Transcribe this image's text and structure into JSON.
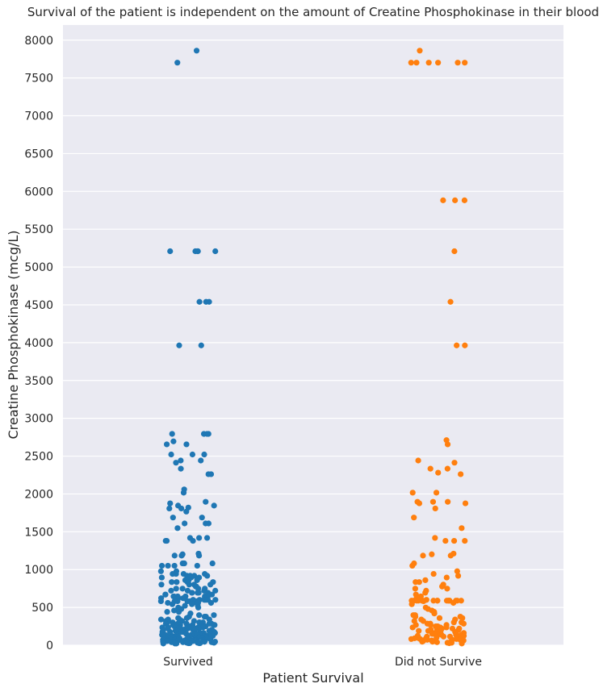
{
  "chart_data": {
    "type": "scatter",
    "title": "Survival of the patient is independent on the amount of Creatine Phosphokinase in their blood",
    "xlabel": "Patient Survival",
    "ylabel": "Creatine Phosphokinase (mcg/L)",
    "categories": [
      "Survived",
      "Did not Survive"
    ],
    "ylim": [
      0,
      8200
    ],
    "yticks": [
      0,
      500,
      1000,
      1500,
      2000,
      2500,
      3000,
      3500,
      4000,
      4500,
      5000,
      5500,
      6000,
      6500,
      7000,
      7500,
      8000
    ],
    "grid": true,
    "background": "#eaeaf2",
    "series": [
      {
        "category": "Survived",
        "color": "#1f77b4",
        "values": [
          7861,
          7702,
          5209,
          5209,
          5209,
          5209,
          5209,
          4540,
          4540,
          4540,
          3964,
          3964,
          2522,
          2522,
          2522,
          2695,
          2794,
          2794,
          2794,
          2794,
          2656,
          2656,
          2442,
          2442,
          2413,
          2334,
          2261,
          2261,
          2017,
          2060,
          1896,
          1876,
          1808,
          1846,
          1808,
          1820,
          1846,
          1767,
          1688,
          1688,
          1610,
          1610,
          1610,
          1548,
          1419,
          1419,
          1419,
          1380,
          1380,
          1380,
          1211,
          1202,
          1185,
          1185,
          1185,
          1082,
          1082,
          1082,
          1082,
          1051,
          1051,
          1051,
          1051,
          978,
          978,
          943,
          943,
          943,
          943,
          918,
          918,
          918,
          918,
          895,
          895,
          895,
          860,
          860,
          860,
          835,
          835,
          835,
          835,
          802,
          802,
          802,
          802,
          776,
          776,
          748,
          748,
          748,
          748,
          721,
          721,
          721,
          721,
          694,
          694,
          694,
          694,
          694,
          670,
          670,
          670,
          646,
          646,
          646,
          646,
          646,
          646,
          622,
          622,
          622,
          622,
          622,
          600,
          600,
          600,
          600,
          600,
          600,
          582,
          582,
          582,
          582,
          582,
          582,
          582,
          582,
          560,
          560,
          560,
          560,
          542,
          542,
          522,
          522,
          498,
          498,
          479,
          479,
          459,
          441,
          441,
          420,
          398,
          398,
          378,
          378,
          378,
          359,
          359,
          359,
          340,
          340,
          340,
          340,
          320,
          320,
          320,
          320,
          320,
          302,
          302,
          302,
          302,
          302,
          302,
          285,
          285,
          285,
          285,
          285,
          268,
          268,
          268,
          268,
          268,
          268,
          250,
          250,
          250,
          250,
          250,
          250,
          250,
          235,
          235,
          235,
          235,
          235,
          235,
          235,
          220,
          220,
          220,
          220,
          220,
          220,
          220,
          205,
          205,
          205,
          205,
          205,
          205,
          190,
          190,
          190,
          190,
          190,
          190,
          190,
          176,
          176,
          176,
          176,
          176,
          176,
          176,
          162,
          162,
          162,
          162,
          162,
          162,
          150,
          150,
          150,
          150,
          150,
          150,
          150,
          137,
          137,
          137,
          137,
          137,
          137,
          125,
          125,
          125,
          125,
          125,
          125,
          125,
          114,
          114,
          114,
          114,
          114,
          114,
          103,
          103,
          103,
          103,
          103,
          103,
          103,
          92,
          92,
          92,
          92,
          92,
          92,
          82,
          82,
          82,
          82,
          82,
          82,
          72,
          72,
          72,
          72,
          72,
          72,
          63,
          63,
          63,
          63,
          63,
          63,
          63,
          55,
          55,
          55,
          55,
          55,
          47,
          47,
          47,
          47,
          47,
          40,
          40,
          40,
          40,
          40,
          33,
          33,
          33,
          33,
          27,
          27,
          27,
          27,
          23,
          23,
          23
        ]
      },
      {
        "category": "Did not Survive",
        "color": "#ff7f0e",
        "values": [
          7861,
          7702,
          7702,
          7702,
          7702,
          7702,
          7702,
          5882,
          5882,
          5882,
          5209,
          4540,
          3964,
          3964,
          2711,
          2656,
          2442,
          2413,
          2334,
          2334,
          2281,
          2261,
          2017,
          2017,
          1896,
          1896,
          1876,
          1876,
          1896,
          1808,
          1688,
          1548,
          1419,
          1380,
          1380,
          1380,
          1211,
          1202,
          1185,
          1185,
          1082,
          1051,
          978,
          943,
          918,
          895,
          860,
          835,
          835,
          802,
          776,
          748,
          748,
          721,
          694,
          670,
          646,
          622,
          600,
          589,
          589,
          589,
          589,
          589,
          589,
          589,
          589,
          589,
          589,
          589,
          589,
          589,
          589,
          589,
          589,
          582,
          560,
          542,
          498,
          479,
          459,
          441,
          420,
          398,
          398,
          378,
          378,
          359,
          359,
          340,
          340,
          320,
          320,
          302,
          302,
          285,
          285,
          285,
          268,
          268,
          268,
          250,
          250,
          250,
          235,
          235,
          235,
          220,
          220,
          220,
          205,
          205,
          205,
          190,
          190,
          190,
          176,
          176,
          176,
          162,
          162,
          162,
          150,
          150,
          150,
          137,
          137,
          137,
          125,
          125,
          125,
          114,
          114,
          114,
          103,
          103,
          103,
          92,
          92,
          92,
          82,
          82,
          82,
          72,
          72,
          72,
          63,
          63,
          63,
          55,
          55,
          47,
          47,
          40,
          40,
          33,
          33,
          27,
          23
        ]
      }
    ]
  }
}
